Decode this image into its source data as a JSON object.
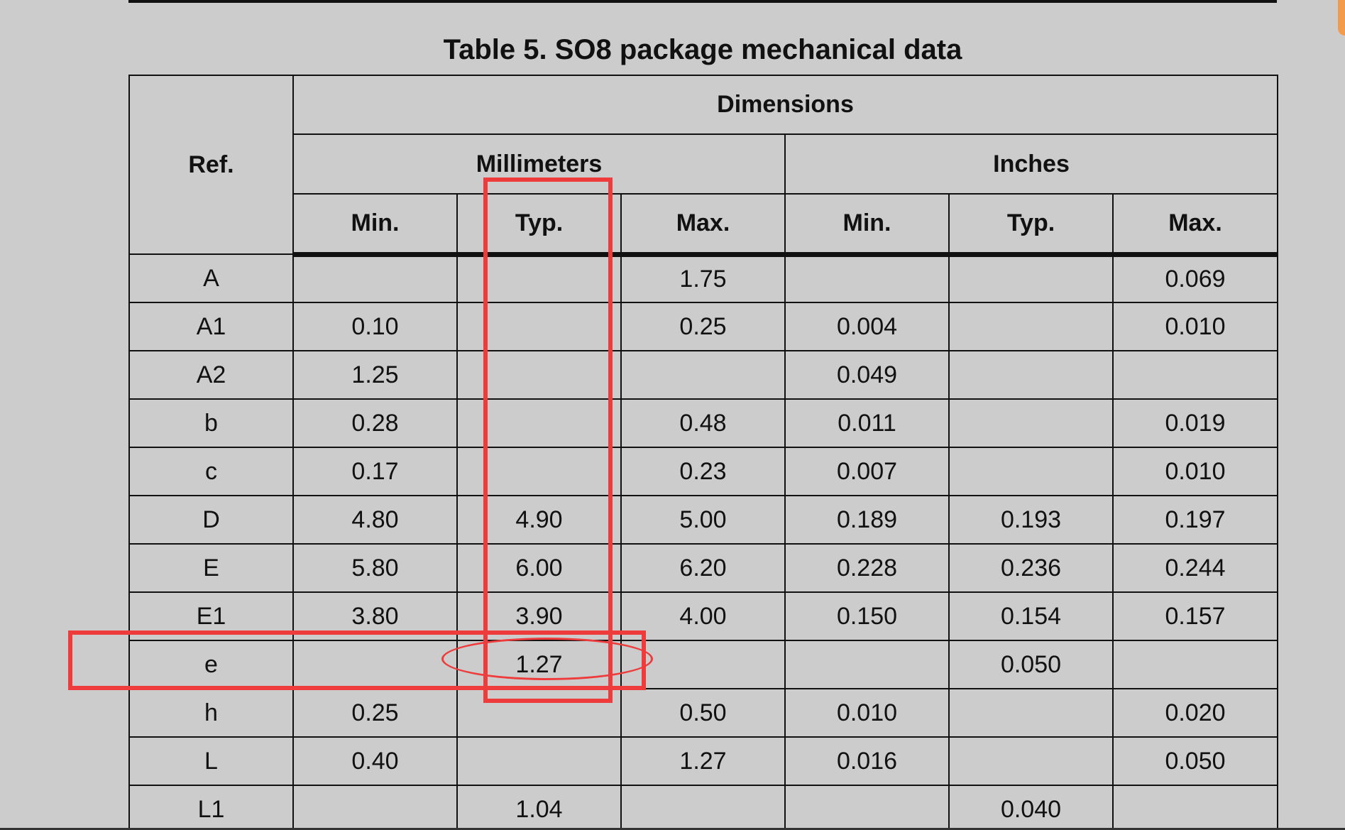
{
  "title": "Table 5. SO8 package mechanical data",
  "headers": {
    "ref": "Ref.",
    "dimensions": "Dimensions",
    "millimeters": "Millimeters",
    "inches": "Inches",
    "mm_min": "Min.",
    "mm_typ": "Typ.",
    "mm_max": "Max.",
    "in_min": "Min.",
    "in_typ": "Typ.",
    "in_max": "Max."
  },
  "rows": [
    {
      "ref": "A",
      "mm_min": "",
      "mm_typ": "",
      "mm_max": "1.75",
      "in_min": "",
      "in_typ": "",
      "in_max": "0.069"
    },
    {
      "ref": "A1",
      "mm_min": "0.10",
      "mm_typ": "",
      "mm_max": "0.25",
      "in_min": "0.004",
      "in_typ": "",
      "in_max": "0.010"
    },
    {
      "ref": "A2",
      "mm_min": "1.25",
      "mm_typ": "",
      "mm_max": "",
      "in_min": "0.049",
      "in_typ": "",
      "in_max": ""
    },
    {
      "ref": "b",
      "mm_min": "0.28",
      "mm_typ": "",
      "mm_max": "0.48",
      "in_min": "0.011",
      "in_typ": "",
      "in_max": "0.019"
    },
    {
      "ref": "c",
      "mm_min": "0.17",
      "mm_typ": "",
      "mm_max": "0.23",
      "in_min": "0.007",
      "in_typ": "",
      "in_max": "0.010"
    },
    {
      "ref": "D",
      "mm_min": "4.80",
      "mm_typ": "4.90",
      "mm_max": "5.00",
      "in_min": "0.189",
      "in_typ": "0.193",
      "in_max": "0.197"
    },
    {
      "ref": "E",
      "mm_min": "5.80",
      "mm_typ": "6.00",
      "mm_max": "6.20",
      "in_min": "0.228",
      "in_typ": "0.236",
      "in_max": "0.244"
    },
    {
      "ref": "E1",
      "mm_min": "3.80",
      "mm_typ": "3.90",
      "mm_max": "4.00",
      "in_min": "0.150",
      "in_typ": "0.154",
      "in_max": "0.157"
    },
    {
      "ref": "e",
      "mm_min": "",
      "mm_typ": "1.27",
      "mm_max": "",
      "in_min": "",
      "in_typ": "0.050",
      "in_max": ""
    },
    {
      "ref": "h",
      "mm_min": "0.25",
      "mm_typ": "",
      "mm_max": "0.50",
      "in_min": "0.010",
      "in_typ": "",
      "in_max": "0.020"
    },
    {
      "ref": "L",
      "mm_min": "0.40",
      "mm_typ": "",
      "mm_max": "1.27",
      "in_min": "0.016",
      "in_typ": "",
      "in_max": "0.050"
    },
    {
      "ref": "L1",
      "mm_min": "",
      "mm_typ": "1.04",
      "mm_max": "",
      "in_min": "",
      "in_typ": "0.040",
      "in_max": ""
    }
  ],
  "colors": {
    "background": "#cccccc",
    "annotation": "#ee3b3b",
    "text": "#111111"
  }
}
